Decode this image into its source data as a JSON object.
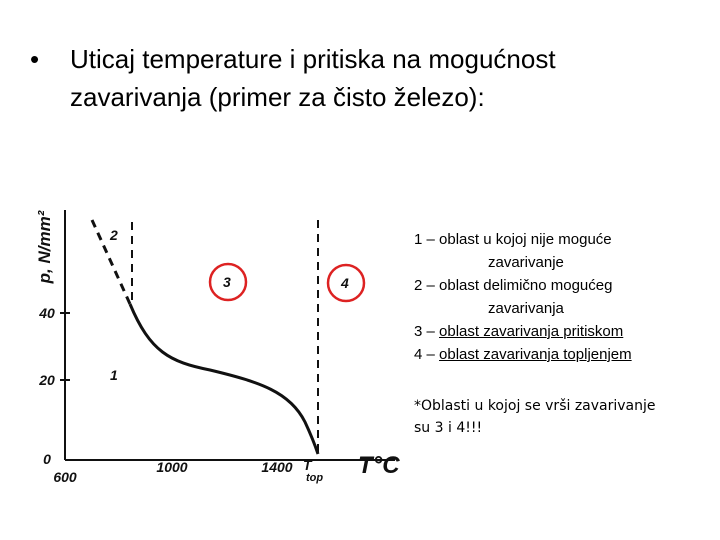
{
  "slide": {
    "bullet": [
      "Uticaj temperature i pritiska na mogućnost",
      "zavarivanja (primer za čisto železo):"
    ]
  },
  "figure": {
    "y_axis_label": "p, N/mm²",
    "x_axis_label": "T°C",
    "y_ticks": [
      "0",
      "20",
      "40"
    ],
    "x_ticks": [
      "600",
      "1000",
      "1400"
    ],
    "t_top": "T",
    "t_top_sub": "top",
    "region_labels": [
      "1",
      "2",
      "3",
      "4"
    ]
  },
  "legend": [
    {
      "prefix": "1 –",
      "text": "oblast u kojoj nije moguće",
      "cont": "zavarivanje"
    },
    {
      "prefix": "2 –",
      "text": "oblast delimično mogućeg",
      "cont": "zavarivanja"
    },
    {
      "prefix": "3 –",
      "text": "oblast zavarivanja pritiskom"
    },
    {
      "prefix": "4 –",
      "text": "oblast zavarivanja topljenjem"
    }
  ],
  "note": [
    "*Oblasti u kojoj se vrši zavarivanje",
    "su 3 i 4!!!"
  ]
}
